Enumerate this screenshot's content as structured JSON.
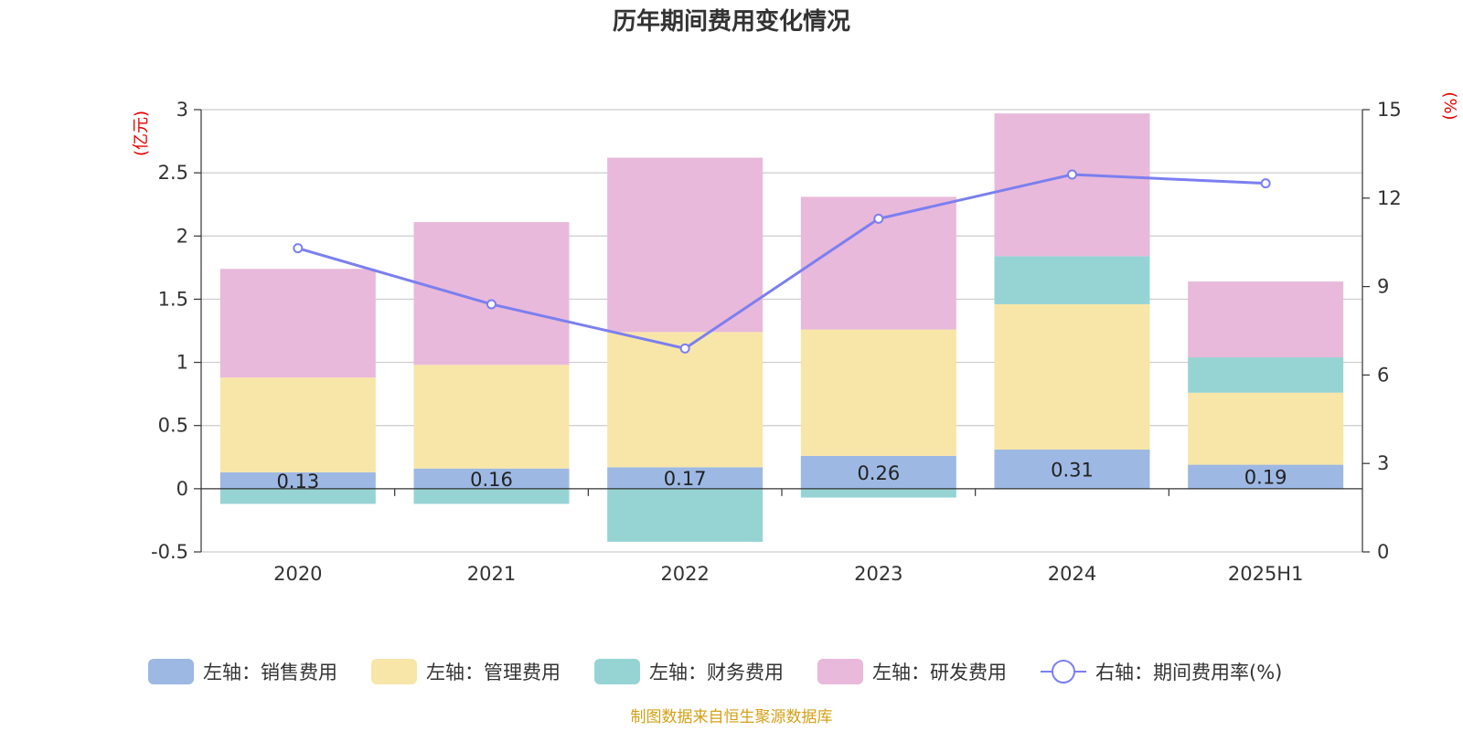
{
  "chart_data": {
    "type": "bar",
    "title": "历年期间费用变化情况",
    "categories": [
      "2020",
      "2021",
      "2022",
      "2023",
      "2024",
      "2025H1"
    ],
    "left_axis": {
      "unit": "(亿元)",
      "ylim": [
        -0.5,
        3
      ],
      "ticks": [
        "-0.5",
        "0",
        "0.5",
        "1",
        "1.5",
        "2",
        "2.5",
        "3"
      ]
    },
    "right_axis": {
      "unit": "(%)",
      "ylim": [
        0,
        15
      ],
      "ticks": [
        "0",
        "3",
        "6",
        "9",
        "12",
        "15"
      ]
    },
    "stacked": true,
    "series": [
      {
        "name": "左轴：销售费用",
        "axis": "left",
        "type": "bar",
        "color": "#9db8e3",
        "values": [
          0.13,
          0.16,
          0.17,
          0.26,
          0.31,
          0.19
        ],
        "labels": [
          "0.13",
          "0.16",
          "0.17",
          "0.26",
          "0.31",
          "0.19"
        ]
      },
      {
        "name": "左轴：管理费用",
        "axis": "left",
        "type": "bar",
        "color": "#f8e6a8",
        "values": [
          0.75,
          0.82,
          1.07,
          1.0,
          1.15,
          0.57
        ]
      },
      {
        "name": "左轴：财务费用",
        "axis": "left",
        "type": "bar",
        "color": "#96d4d4",
        "values": [
          -0.12,
          -0.12,
          -0.42,
          -0.07,
          0.38,
          0.28
        ]
      },
      {
        "name": "左轴：研发费用",
        "axis": "left",
        "type": "bar",
        "color": "#e8b9da",
        "values": [
          0.86,
          1.13,
          1.38,
          1.05,
          1.13,
          0.6
        ]
      },
      {
        "name": "右轴：期间费用率(%)",
        "axis": "right",
        "type": "line",
        "color": "#7b7ff0",
        "values": [
          10.3,
          8.4,
          6.9,
          11.3,
          12.8,
          12.5
        ]
      }
    ],
    "legend_position": "bottom",
    "grid": true
  },
  "source": "制图数据来自恒生聚源数据库"
}
